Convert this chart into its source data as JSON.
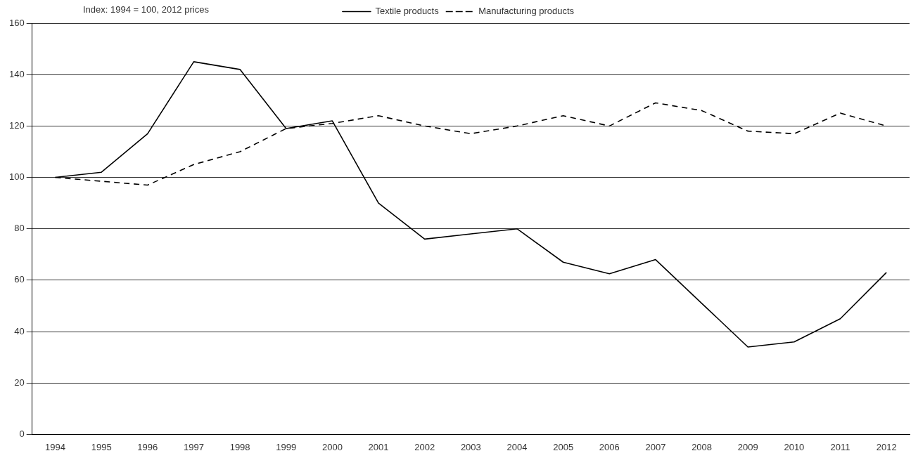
{
  "chart_data": {
    "type": "line",
    "subtitle": "Index: 1994 = 100, 2012 prices",
    "categories": [
      "1994",
      "1995",
      "1996",
      "1997",
      "1998",
      "1999",
      "2000",
      "2001",
      "2002",
      "2003",
      "2004",
      "2005",
      "2006",
      "2007",
      "2008",
      "2009",
      "2010",
      "2011",
      "2012"
    ],
    "series": [
      {
        "name": "Textile products",
        "color": "#000000",
        "line_style": "solid",
        "values": [
          100,
          102,
          117,
          145,
          142,
          119,
          122,
          90,
          76,
          78,
          80,
          67,
          62.5,
          68,
          51,
          34,
          36,
          45,
          63
        ]
      },
      {
        "name": "Manufacturing products",
        "color": "#000000",
        "line_style": "dashed",
        "values": [
          100,
          98.5,
          97,
          105,
          110,
          119,
          121,
          124,
          120,
          117,
          120,
          124,
          120,
          129,
          126,
          118,
          117,
          125,
          120
        ]
      }
    ],
    "ylim": [
      0,
      160
    ],
    "yticks": [
      0,
      20,
      40,
      60,
      80,
      100,
      120,
      140,
      160
    ],
    "grid": "y",
    "legend": "top",
    "marker": "none"
  }
}
